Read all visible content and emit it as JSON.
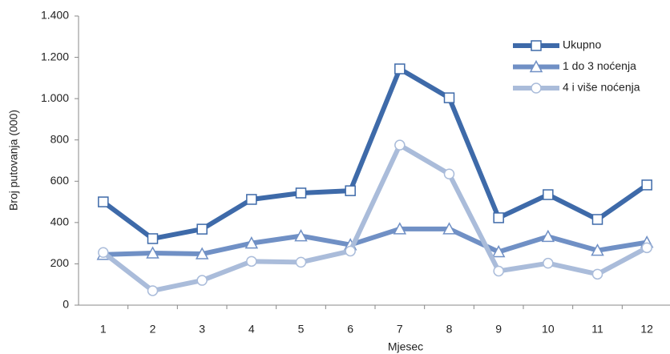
{
  "chart_data": {
    "type": "line",
    "x_label": "Mjesec",
    "y_label": "Broj putovanja (000)",
    "categories": [
      "1",
      "2",
      "3",
      "4",
      "5",
      "6",
      "7",
      "8",
      "9",
      "10",
      "11",
      "12"
    ],
    "series": [
      {
        "name": "Ukupno",
        "color": "#3e6aa9",
        "marker": "square",
        "values": [
          500,
          322,
          368,
          512,
          543,
          554,
          1144,
          1004,
          423,
          535,
          415,
          582
        ]
      },
      {
        "name": "1 do 3 noćenja",
        "color": "#7090c5",
        "marker": "triangle",
        "values": [
          245,
          252,
          248,
          300,
          335,
          292,
          369,
          369,
          258,
          332,
          265,
          304
        ]
      },
      {
        "name": "4 i više noćenja",
        "color": "#aabcda",
        "marker": "circle",
        "values": [
          255,
          70,
          120,
          212,
          208,
          262,
          775,
          635,
          165,
          203,
          150,
          278
        ]
      }
    ],
    "ylim": [
      0,
      1400
    ],
    "yticks": [
      0,
      200,
      400,
      600,
      800,
      {
        "value": 1000,
        "label": "1.000"
      },
      {
        "value": 1200,
        "label": "1.200"
      },
      {
        "value": 1400,
        "label": "1.400"
      }
    ],
    "grid": false,
    "legend": "upper right"
  }
}
